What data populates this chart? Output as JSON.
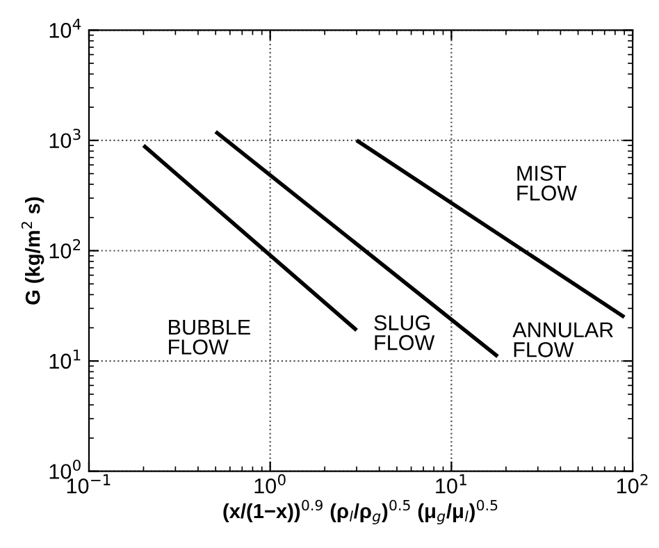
{
  "chart_data": {
    "type": "line",
    "xlabel": "(x/(1−x))$^{0.9}$ (ρ$_{l}$/ρ$_{g}$)$^{0.5}$ (μ$_{g}$/μ$_{l}$)$^{0.5}$",
    "ylabel": "G (kg/m$^{2}$ s)",
    "log": "xy",
    "xlim": [
      0.1,
      100
    ],
    "ylim": [
      1,
      10000
    ],
    "xticks": [
      {
        "value": 0.1,
        "label": "10$^{−1}$"
      },
      {
        "value": 1,
        "label": "10$^{0}$"
      },
      {
        "value": 10,
        "label": "10$^{1}$"
      },
      {
        "value": 100,
        "label": "10$^{2}$"
      }
    ],
    "yticks": [
      {
        "value": 1,
        "label": "10$^{0}$"
      },
      {
        "value": 10,
        "label": "10$^{1}$"
      },
      {
        "value": 100,
        "label": "10$^{2}$"
      },
      {
        "value": 1000,
        "label": "10$^{3}$"
      },
      {
        "value": 10000,
        "label": "10$^{4}$"
      }
    ],
    "grid": true,
    "marker": "none",
    "line_style": "solid",
    "series": [
      {
        "color": "#000000",
        "x": [
          0.2,
          3.0
        ],
        "values": [
          900,
          19
        ]
      },
      {
        "color": "#000000",
        "x": [
          0.5,
          18
        ],
        "values": [
          1200,
          11
        ]
      },
      {
        "color": "#000000",
        "x": [
          3.0,
          90
        ],
        "values": [
          1000,
          25
        ]
      }
    ],
    "annotations": [
      "BUBBLE\nFLOW",
      "SLUG\nFLOW",
      "ANNULAR\nFLOW",
      "MIST\nFLOW"
    ]
  }
}
